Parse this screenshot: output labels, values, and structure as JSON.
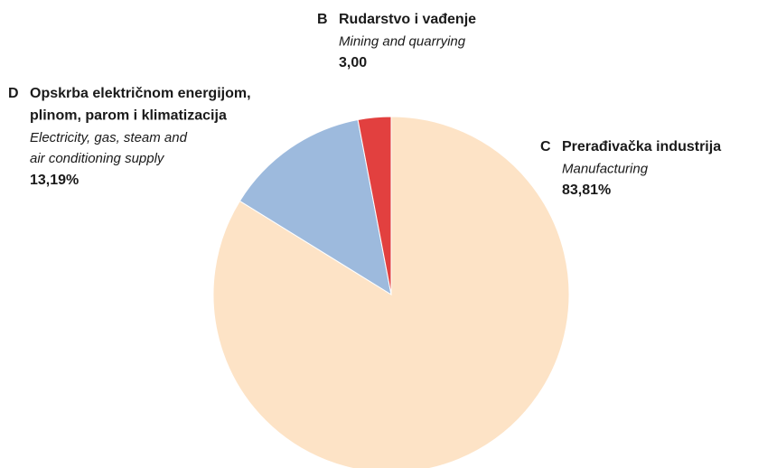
{
  "chart_data": {
    "type": "pie",
    "categories": [
      "C",
      "D",
      "B"
    ],
    "names": [
      [
        "Prerađivačka industrija"
      ],
      [
        "Opskrba električnom energijom,",
        "plinom, parom i klimatizacija"
      ],
      [
        "Rudarstvo i vađenje"
      ]
    ],
    "names_en": [
      [
        "Manufacturing"
      ],
      [
        "Electricity, gas, steam and",
        "air conditioning supply"
      ],
      [
        "Mining and quarrying"
      ]
    ],
    "values": [
      83.81,
      13.19,
      3.0
    ],
    "value_labels": [
      "83,81%",
      "13,19%",
      "3,00"
    ],
    "colors": [
      "#fde3c6",
      "#9dbadd",
      "#e2403f"
    ]
  }
}
